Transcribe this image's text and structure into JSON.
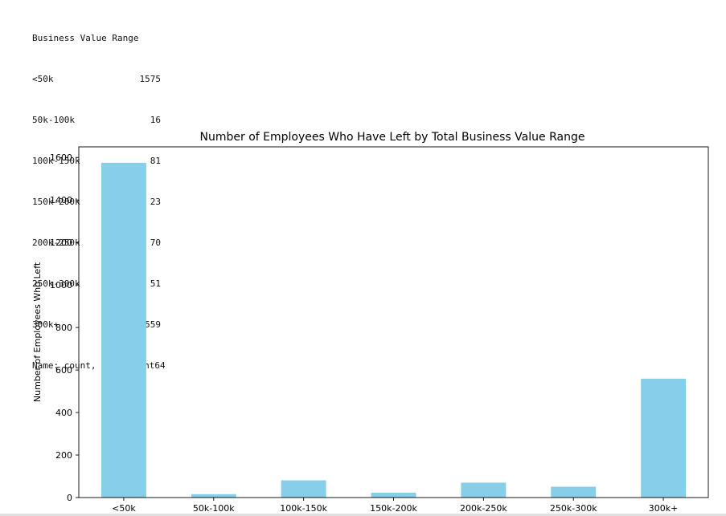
{
  "console": {
    "header": "Business Value Range",
    "rows": [
      {
        "label": "<50k",
        "value": "1575"
      },
      {
        "label": "50k-100k",
        "value": "16"
      },
      {
        "label": "100k-150k",
        "value": "81"
      },
      {
        "label": "150k-200k",
        "value": "23"
      },
      {
        "label": "200k-250k",
        "value": "70"
      },
      {
        "label": "250k-300k",
        "value": "51"
      },
      {
        "label": "300k+",
        "value": "559"
      }
    ],
    "footer": "Name: count, dtype: int64"
  },
  "chart_data": {
    "type": "bar",
    "title": "Number of Employees Who Have Left by Total Business Value Range",
    "xlabel": "",
    "ylabel": "Number of Employees Who Left",
    "categories": [
      "<50k",
      "50k-100k",
      "100k-150k",
      "150k-200k",
      "200k-250k",
      "250k-300k",
      "300k+"
    ],
    "values": [
      1575,
      16,
      81,
      23,
      70,
      51,
      559
    ],
    "ylim": [
      0,
      1650
    ],
    "yticks": [
      0,
      200,
      400,
      600,
      800,
      1000,
      1200,
      1400,
      1600
    ],
    "bar_color": "#87ceeb",
    "grid": false,
    "legend": "none"
  }
}
